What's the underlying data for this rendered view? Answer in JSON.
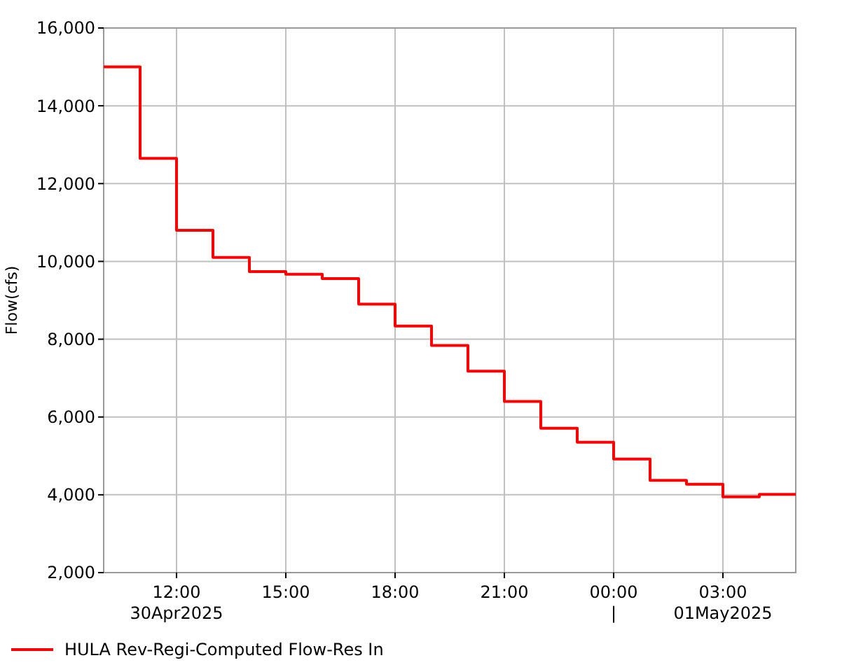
{
  "chart_data": {
    "type": "step",
    "ylabel": "Flow(cfs)",
    "x": [
      "2025-04-30T10:00",
      "2025-04-30T11:00",
      "2025-04-30T12:00",
      "2025-04-30T13:00",
      "2025-04-30T14:00",
      "2025-04-30T15:00",
      "2025-04-30T16:00",
      "2025-04-30T17:00",
      "2025-04-30T18:00",
      "2025-04-30T19:00",
      "2025-04-30T20:00",
      "2025-04-30T21:00",
      "2025-04-30T22:00",
      "2025-04-30T23:00",
      "2025-05-01T00:00",
      "2025-05-01T01:00",
      "2025-05-01T02:00",
      "2025-05-01T03:00",
      "2025-05-01T04:00",
      "2025-05-01T05:00"
    ],
    "series": [
      {
        "name": "HULA Rev-Regi-Computed Flow-Res In",
        "color": "#ff0000",
        "values": [
          15000,
          12650,
          10800,
          10100,
          9740,
          9670,
          9560,
          8900,
          8340,
          7840,
          7180,
          6400,
          5710,
          5350,
          4920,
          4370,
          4270,
          3950,
          4010,
          4010
        ]
      }
    ],
    "xlim": [
      "2025-04-30T10:00",
      "2025-05-01T05:00"
    ],
    "xticks": [
      {
        "value": "2025-04-30T12:00",
        "label": "12:00\n30Apr2025"
      },
      {
        "value": "2025-04-30T15:00",
        "label": "15:00"
      },
      {
        "value": "2025-04-30T18:00",
        "label": "18:00"
      },
      {
        "value": "2025-04-30T21:00",
        "label": "21:00"
      },
      {
        "value": "2025-05-01T00:00",
        "label": "00:00\n|"
      },
      {
        "value": "2025-05-01T03:00",
        "label": "03:00\n01May2025"
      }
    ],
    "ylim": [
      2000,
      16000
    ],
    "yticks": [
      {
        "value": 2000,
        "label": "2,000"
      },
      {
        "value": 4000,
        "label": "4,000"
      },
      {
        "value": 6000,
        "label": "6,000"
      },
      {
        "value": 8000,
        "label": "8,000"
      },
      {
        "value": 10000,
        "label": "10,000"
      },
      {
        "value": 12000,
        "label": "12,000"
      },
      {
        "value": 14000,
        "label": "14,000"
      },
      {
        "value": 16000,
        "label": "16,000"
      }
    ],
    "grid": true,
    "legend": "bottom",
    "line_style": "solid"
  }
}
